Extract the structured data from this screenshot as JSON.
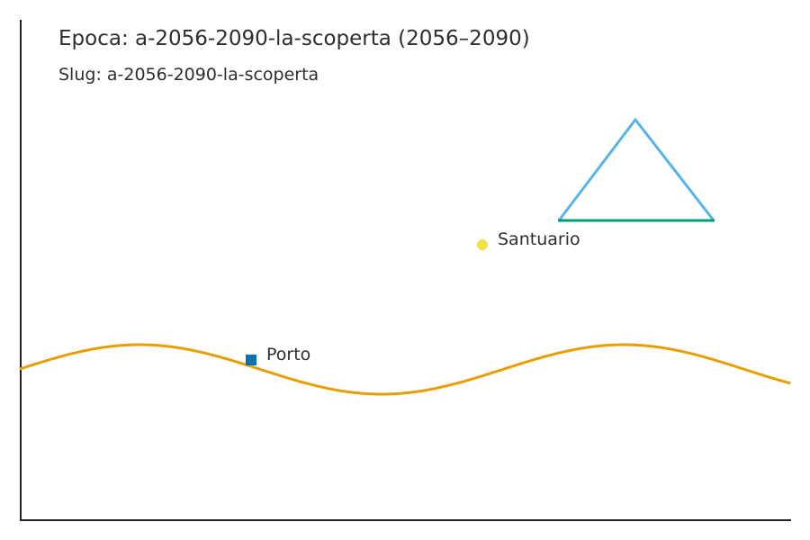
{
  "header": {
    "title": "Epoca: a-2056-2090-la-scoperta (2056–2090)",
    "slug_line": "Slug: a-2056-2090-la-scoperta"
  },
  "places": [
    {
      "name": "Porto",
      "marker": "square-marker",
      "color": "#0b72b0"
    },
    {
      "name": "Santuario",
      "marker": "circle-marker",
      "color": "#f0e442"
    }
  ],
  "features": {
    "river": {
      "color": "#e69f00"
    },
    "mountain": {
      "color": "#56b4e9",
      "base_color": "#009e73"
    }
  },
  "axes": {
    "color": "#222222"
  }
}
